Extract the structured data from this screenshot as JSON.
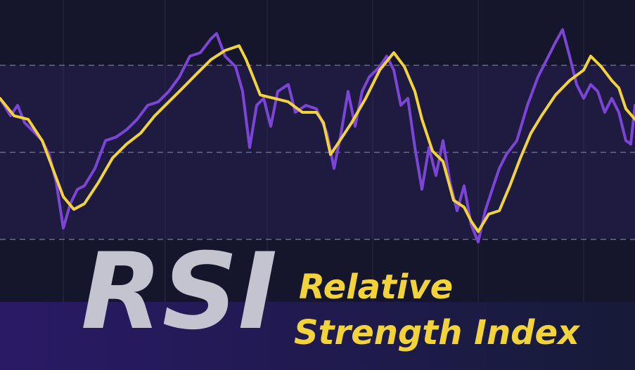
{
  "chart_data": {
    "type": "line",
    "title": "RSI",
    "subtitle": [
      "Relative",
      "Strength Index"
    ],
    "xlim": [
      0,
      903
    ],
    "ylim": [
      0,
      85
    ],
    "reference_lines": [
      70,
      50,
      30
    ],
    "series": [
      {
        "color": "#7b45d6",
        "x": [
          0,
          15,
          25,
          35,
          50,
          60,
          70,
          80,
          90,
          100,
          110,
          120,
          135,
          150,
          165,
          180,
          195,
          210,
          225,
          240,
          255,
          270,
          285,
          300,
          308,
          320,
          335,
          345,
          355,
          365,
          375,
          385,
          395,
          410,
          420,
          435,
          450,
          465,
          475,
          485,
          495,
          505,
          515,
          525,
          540,
          550,
          560,
          570,
          580,
          590,
          600,
          610,
          620,
          630,
          640,
          650,
          660,
          670,
          680,
          690,
          700,
          710,
          720,
          735,
          750,
          765,
          775,
          790,
          800,
          810,
          820,
          830,
          840,
          850,
          860,
          870,
          880,
          890,
          897,
          903
        ],
        "values": [
          62.4,
          58.4,
          60.8,
          56.8,
          54.4,
          52.7,
          49.5,
          43.1,
          32.6,
          38.2,
          41.5,
          42.3,
          46.3,
          52.7,
          53.5,
          55.2,
          57.6,
          60.8,
          61.6,
          64.0,
          67.3,
          72.1,
          72.9,
          76.1,
          77.3,
          72.1,
          69.7,
          64.0,
          51.1,
          60.8,
          62.4,
          56.0,
          64.0,
          65.6,
          59.2,
          60.8,
          60.0,
          54.4,
          46.3,
          54.4,
          64.0,
          56.0,
          64.0,
          67.3,
          69.7,
          72.1,
          68.9,
          60.8,
          62.4,
          51.1,
          41.5,
          51.1,
          44.7,
          52.7,
          43.1,
          36.6,
          42.3,
          33.4,
          29.4,
          36.6,
          41.5,
          46.3,
          49.5,
          52.7,
          60.8,
          67.3,
          70.5,
          75.3,
          78.2,
          72.1,
          65.6,
          62.4,
          65.6,
          64.0,
          59.2,
          62.4,
          59.2,
          52.7,
          51.9,
          60.8
        ]
      },
      {
        "color": "#f2d43a",
        "x": [
          0,
          20,
          40,
          60,
          75,
          90,
          105,
          120,
          140,
          160,
          180,
          200,
          220,
          240,
          260,
          280,
          300,
          320,
          340,
          350,
          360,
          370,
          390,
          410,
          430,
          450,
          460,
          470,
          480,
          500,
          520,
          540,
          560,
          575,
          590,
          600,
          615,
          630,
          645,
          660,
          670,
          680,
          695,
          710,
          725,
          740,
          755,
          770,
          790,
          810,
          830,
          840,
          855,
          870,
          880,
          890,
          903
        ],
        "values": [
          62.4,
          58.4,
          57.6,
          52.7,
          46.3,
          39.8,
          36.9,
          38.2,
          43.1,
          48.7,
          51.9,
          54.4,
          58.4,
          61.6,
          64.8,
          68.1,
          71.3,
          73.4,
          74.5,
          71.3,
          67.3,
          63.2,
          62.4,
          61.6,
          59.2,
          59.2,
          56.8,
          49.5,
          51.9,
          56.8,
          62.4,
          68.9,
          72.9,
          69.7,
          64.0,
          57.6,
          50.3,
          47.9,
          39.0,
          37.4,
          34.2,
          31.8,
          35.8,
          36.6,
          42.3,
          48.7,
          54.4,
          58.4,
          63.2,
          66.5,
          68.9,
          72.1,
          69.7,
          66.5,
          64.8,
          60.0,
          57.6
        ]
      }
    ]
  }
}
